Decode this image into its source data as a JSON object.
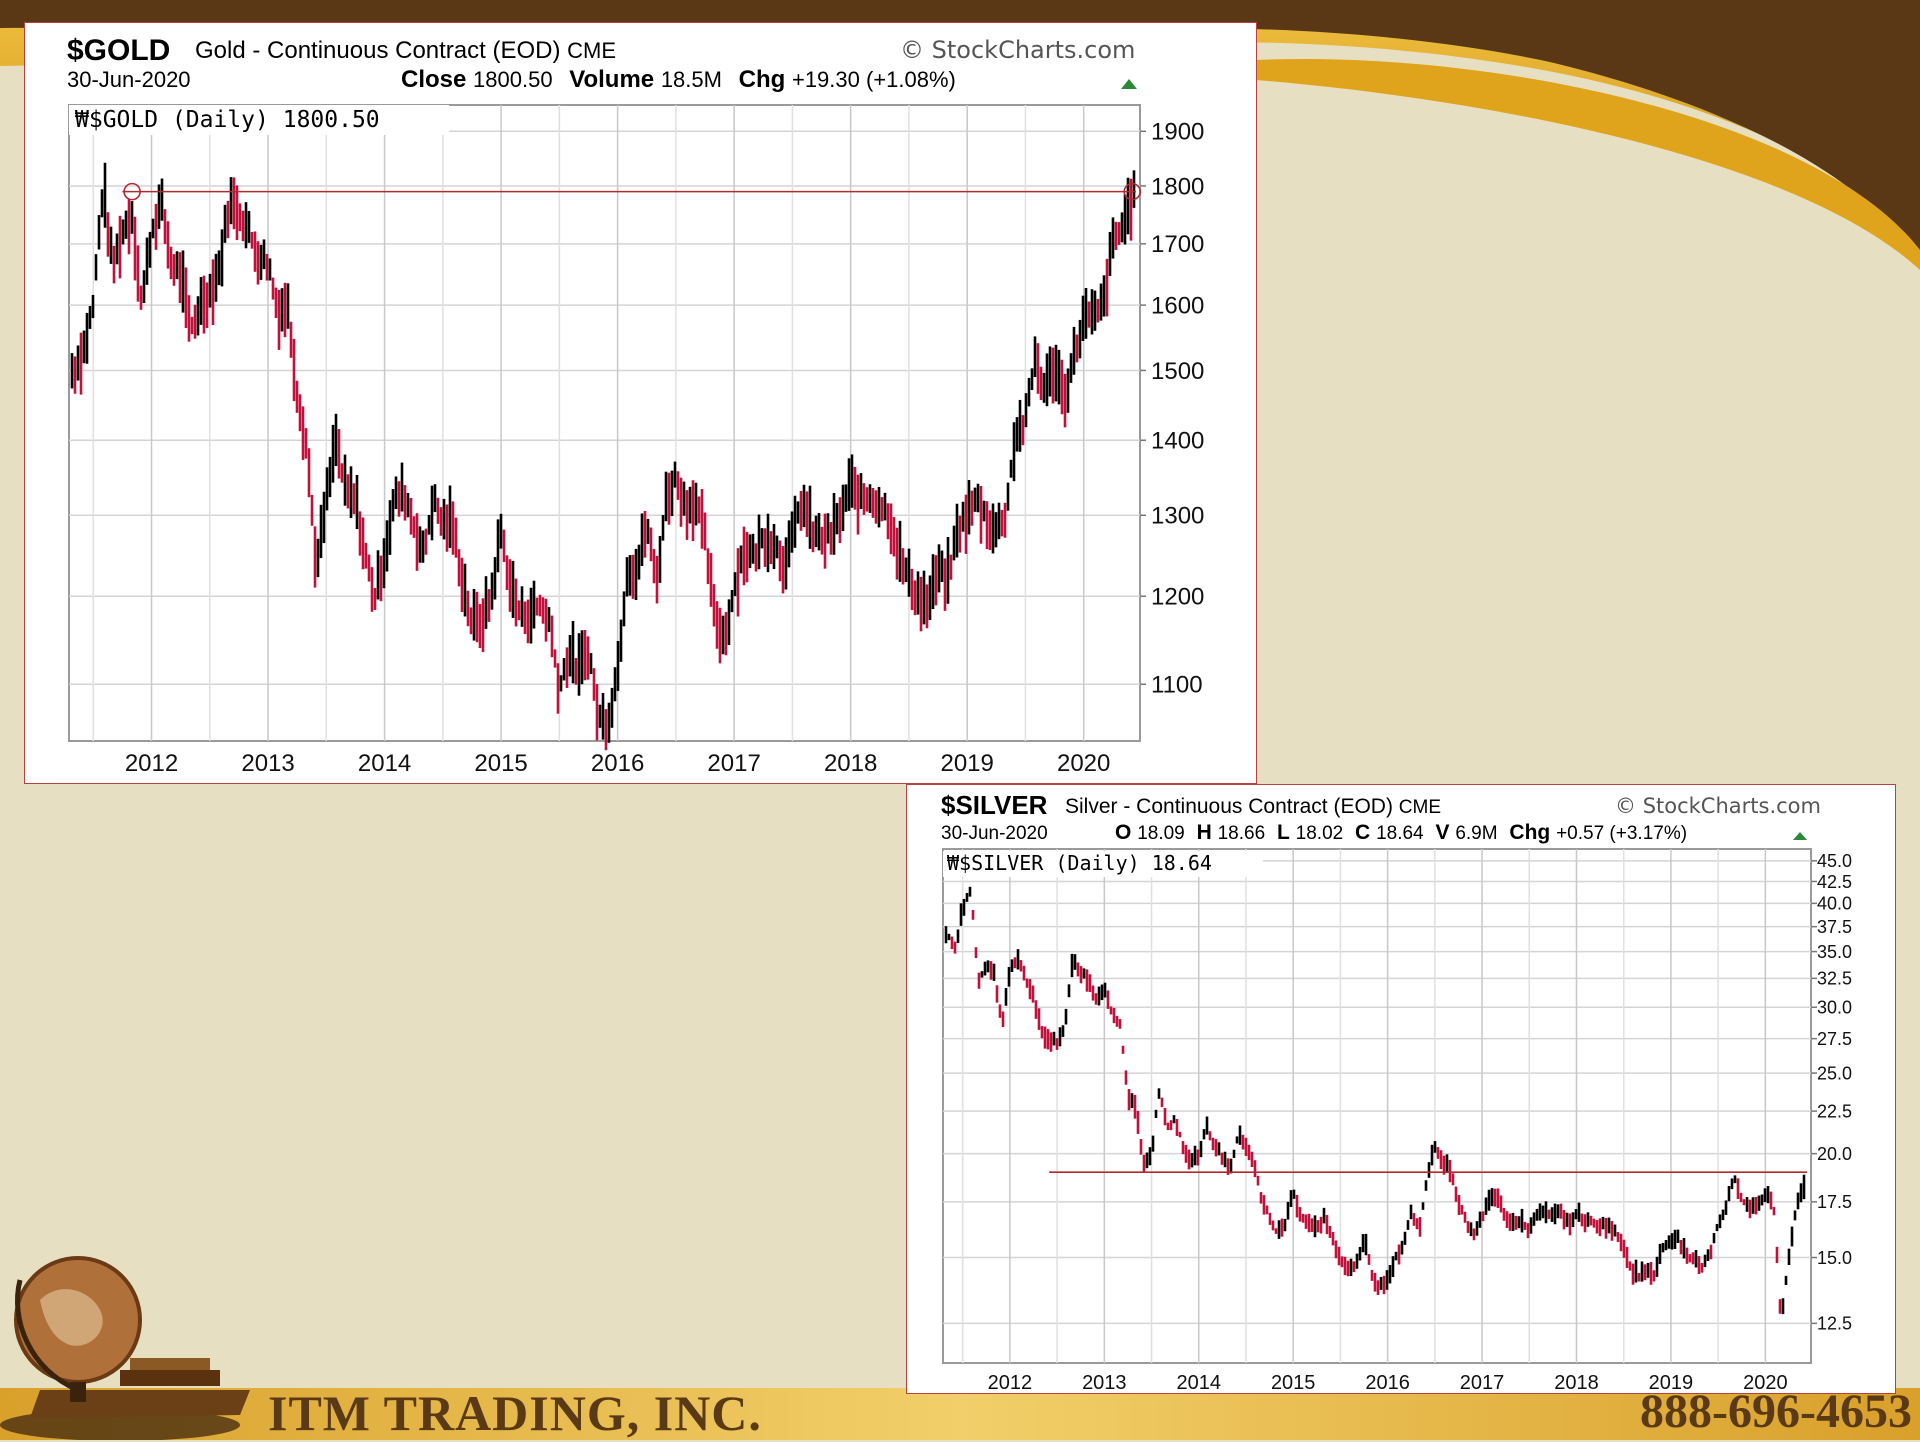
{
  "footer": {
    "company": "ITM TRADING, INC.",
    "phone": "888-696-4653"
  },
  "colors": {
    "background": "#e6dfc2",
    "brown": "#5a3816",
    "gold_band": "#e0a31c",
    "resistance_line": "#b02a30",
    "bar_up": "#000000",
    "bar_down": "#c2103a"
  },
  "gold": {
    "symbol": "$GOLD",
    "description": "Gold - Continuous Contract (EOD)",
    "exchange": "CME",
    "watermark": "StockCharts.com",
    "date": "30-Jun-2020",
    "stats": [
      {
        "label": "Close",
        "value": "1800.50"
      },
      {
        "label": "Volume",
        "value": "18.5M"
      },
      {
        "label": "Chg",
        "value": "+19.30 (+1.08%)"
      }
    ],
    "legend": "$GOLD (Daily) 1800.50"
  },
  "silver": {
    "symbol": "$SILVER",
    "description": "Silver - Continuous Contract (EOD)",
    "exchange": "CME",
    "watermark": "StockCharts.com",
    "date": "30-Jun-2020",
    "stats": [
      {
        "label": "O",
        "value": "18.09"
      },
      {
        "label": "H",
        "value": "18.66"
      },
      {
        "label": "L",
        "value": "18.02"
      },
      {
        "label": "C",
        "value": "18.64"
      },
      {
        "label": "V",
        "value": "6.9M"
      },
      {
        "label": "Chg",
        "value": "+0.57 (+3.17%)"
      }
    ],
    "legend": "$SILVER (Daily) 18.64"
  },
  "chart_data": [
    {
      "type": "line",
      "title": "$GOLD Gold - Continuous Contract (EOD) CME",
      "series": [
        {
          "name": "$GOLD (Daily)",
          "x": [
            "2011-05",
            "2011-06",
            "2011-07",
            "2011-08",
            "2011-09",
            "2011-10",
            "2011-11",
            "2011-12",
            "2012-01",
            "2012-02",
            "2012-03",
            "2012-04",
            "2012-05",
            "2012-06",
            "2012-07",
            "2012-08",
            "2012-09",
            "2012-10",
            "2012-11",
            "2012-12",
            "2013-01",
            "2013-02",
            "2013-03",
            "2013-04",
            "2013-05",
            "2013-06",
            "2013-07",
            "2013-08",
            "2013-09",
            "2013-10",
            "2013-11",
            "2013-12",
            "2014-01",
            "2014-02",
            "2014-03",
            "2014-04",
            "2014-05",
            "2014-06",
            "2014-07",
            "2014-08",
            "2014-09",
            "2014-10",
            "2014-11",
            "2014-12",
            "2015-01",
            "2015-02",
            "2015-03",
            "2015-04",
            "2015-05",
            "2015-06",
            "2015-07",
            "2015-08",
            "2015-09",
            "2015-10",
            "2015-11",
            "2015-12",
            "2016-01",
            "2016-02",
            "2016-03",
            "2016-04",
            "2016-05",
            "2016-06",
            "2016-07",
            "2016-08",
            "2016-09",
            "2016-10",
            "2016-11",
            "2016-12",
            "2017-01",
            "2017-02",
            "2017-03",
            "2017-04",
            "2017-05",
            "2017-06",
            "2017-07",
            "2017-08",
            "2017-09",
            "2017-10",
            "2017-11",
            "2017-12",
            "2018-01",
            "2018-02",
            "2018-03",
            "2018-04",
            "2018-05",
            "2018-06",
            "2018-07",
            "2018-08",
            "2018-09",
            "2018-10",
            "2018-11",
            "2018-12",
            "2019-01",
            "2019-02",
            "2019-03",
            "2019-04",
            "2019-05",
            "2019-06",
            "2019-07",
            "2019-08",
            "2019-09",
            "2019-10",
            "2019-11",
            "2019-12",
            "2020-01",
            "2020-02",
            "2020-03",
            "2020-04",
            "2020-05",
            "2020-06"
          ],
          "values": [
            1500,
            1530,
            1600,
            1800,
            1660,
            1720,
            1750,
            1600,
            1720,
            1770,
            1670,
            1650,
            1560,
            1600,
            1620,
            1660,
            1770,
            1760,
            1720,
            1680,
            1670,
            1590,
            1600,
            1470,
            1390,
            1230,
            1320,
            1400,
            1330,
            1320,
            1250,
            1200,
            1250,
            1320,
            1330,
            1290,
            1250,
            1320,
            1290,
            1290,
            1220,
            1170,
            1170,
            1200,
            1280,
            1210,
            1180,
            1180,
            1190,
            1170,
            1095,
            1135,
            1115,
            1140,
            1065,
            1060,
            1115,
            1235,
            1230,
            1290,
            1215,
            1320,
            1350,
            1310,
            1320,
            1270,
            1175,
            1150,
            1210,
            1255,
            1250,
            1270,
            1270,
            1240,
            1270,
            1320,
            1280,
            1270,
            1275,
            1300,
            1340,
            1320,
            1325,
            1315,
            1300,
            1250,
            1220,
            1200,
            1190,
            1230,
            1220,
            1280,
            1300,
            1320,
            1295,
            1280,
            1305,
            1410,
            1425,
            1520,
            1470,
            1510,
            1460,
            1520,
            1580,
            1580,
            1600,
            1700,
            1730,
            1780
          ]
        }
      ],
      "yticks": [
        1100,
        1200,
        1300,
        1400,
        1500,
        1600,
        1700,
        1800,
        1900
      ],
      "xticks": [
        "2012",
        "2013",
        "2014",
        "2015",
        "2016",
        "2017",
        "2018",
        "2019",
        "2020"
      ],
      "yscale": "log",
      "ylim": [
        1040,
        1950
      ],
      "grid": true,
      "annotations": [
        {
          "type": "horizontal_line",
          "y": 1790
        }
      ],
      "legend_position": "top-left"
    },
    {
      "type": "line",
      "title": "$SILVER Silver - Continuous Contract (EOD) CME",
      "series": [
        {
          "name": "$SILVER (Daily)",
          "x": [
            "2011-05",
            "2011-06",
            "2011-07",
            "2011-08",
            "2011-09",
            "2011-10",
            "2011-11",
            "2011-12",
            "2012-01",
            "2012-02",
            "2012-03",
            "2012-04",
            "2012-05",
            "2012-06",
            "2012-07",
            "2012-08",
            "2012-09",
            "2012-10",
            "2012-11",
            "2012-12",
            "2013-01",
            "2013-02",
            "2013-03",
            "2013-04",
            "2013-05",
            "2013-06",
            "2013-07",
            "2013-08",
            "2013-09",
            "2013-10",
            "2013-11",
            "2013-12",
            "2014-01",
            "2014-02",
            "2014-03",
            "2014-04",
            "2014-05",
            "2014-06",
            "2014-07",
            "2014-08",
            "2014-09",
            "2014-10",
            "2014-11",
            "2014-12",
            "2015-01",
            "2015-02",
            "2015-03",
            "2015-04",
            "2015-05",
            "2015-06",
            "2015-07",
            "2015-08",
            "2015-09",
            "2015-10",
            "2015-11",
            "2015-12",
            "2016-01",
            "2016-02",
            "2016-03",
            "2016-04",
            "2016-05",
            "2016-06",
            "2016-07",
            "2016-08",
            "2016-09",
            "2016-10",
            "2016-11",
            "2016-12",
            "2017-01",
            "2017-02",
            "2017-03",
            "2017-04",
            "2017-05",
            "2017-06",
            "2017-07",
            "2017-08",
            "2017-09",
            "2017-10",
            "2017-11",
            "2017-12",
            "2018-01",
            "2018-02",
            "2018-03",
            "2018-04",
            "2018-05",
            "2018-06",
            "2018-07",
            "2018-08",
            "2018-09",
            "2018-10",
            "2018-11",
            "2018-12",
            "2019-01",
            "2019-02",
            "2019-03",
            "2019-04",
            "2019-05",
            "2019-06",
            "2019-07",
            "2019-08",
            "2019-09",
            "2019-10",
            "2019-11",
            "2019-12",
            "2020-01",
            "2020-02",
            "2020-03",
            "2020-04",
            "2020-05",
            "2020-06"
          ],
          "values": [
            37.0,
            35.0,
            39.5,
            41.5,
            32.0,
            34.0,
            33.0,
            28.5,
            33.0,
            34.5,
            32.5,
            31.0,
            28.0,
            27.5,
            27.3,
            28.5,
            34.0,
            33.0,
            32.5,
            30.5,
            31.5,
            29.5,
            28.5,
            23.5,
            22.5,
            19.5,
            20.0,
            24.0,
            21.5,
            22.0,
            20.5,
            19.5,
            20.0,
            21.5,
            20.5,
            19.8,
            19.2,
            21.0,
            20.5,
            19.5,
            17.5,
            16.8,
            16.0,
            16.5,
            18.0,
            16.8,
            16.5,
            16.2,
            16.8,
            15.8,
            14.8,
            14.5,
            14.8,
            15.8,
            14.3,
            13.8,
            14.2,
            15.0,
            15.5,
            17.0,
            16.2,
            18.5,
            20.5,
            19.5,
            19.2,
            17.5,
            16.5,
            15.9,
            16.8,
            17.8,
            17.8,
            16.8,
            16.5,
            16.5,
            16.2,
            17.0,
            16.9,
            16.8,
            17.0,
            16.5,
            17.0,
            16.6,
            16.5,
            16.4,
            16.4,
            16.0,
            15.5,
            14.5,
            14.2,
            14.6,
            14.3,
            15.5,
            15.6,
            15.8,
            15.0,
            15.0,
            14.6,
            15.2,
            16.5,
            17.2,
            18.8,
            17.7,
            17.0,
            17.5,
            17.9,
            17.5,
            12.5,
            15.0,
            17.5,
            18.5
          ]
        }
      ],
      "yticks": [
        12.5,
        15.0,
        17.5,
        20.0,
        22.5,
        25.0,
        27.5,
        30.0,
        32.5,
        35.0,
        37.5,
        40.0,
        42.5,
        45.0
      ],
      "xticks": [
        "2012",
        "2013",
        "2014",
        "2015",
        "2016",
        "2017",
        "2018",
        "2019",
        "2020"
      ],
      "yscale": "log",
      "ylim": [
        11.2,
        46.5
      ],
      "grid": true,
      "annotations": [
        {
          "type": "horizontal_line",
          "y": 19.0
        }
      ],
      "legend_position": "top-left"
    }
  ]
}
